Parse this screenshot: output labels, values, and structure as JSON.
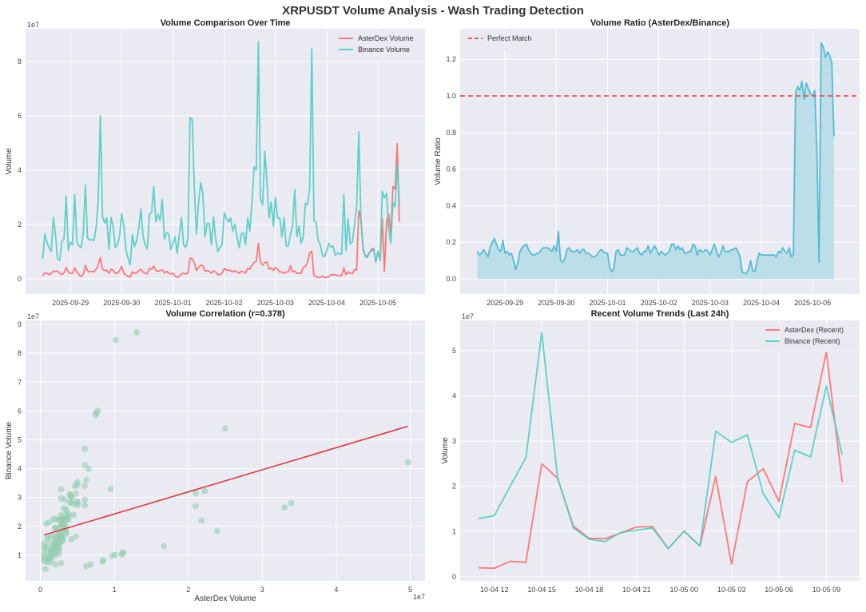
{
  "figure": {
    "title": "XRPUSDT Volume Analysis - Wash Trading Detection",
    "colors": {
      "background": "#ffffff",
      "axes_background": "#eaeaf2",
      "grid": "#ffffff",
      "asterdex": "#ff6b6b",
      "binance": "#4ecdc4",
      "ratio": "#45b7d1",
      "ratio_fill": "#b9dde8",
      "perfect_match": "#e84545",
      "scatter": "#96ceb4",
      "regression": "#e03a3a"
    }
  },
  "chart_data": [
    {
      "type": "line",
      "title": "Volume Comparison Over Time",
      "ylabel": "Volume",
      "xlabel": "",
      "offset_text": "1e7",
      "x_start": "2025-09-28 11:00",
      "x_step_hours": 1,
      "ylim": [
        -0.56,
        9.2
      ],
      "yticks": [
        "0",
        "2",
        "4",
        "6",
        "8"
      ],
      "xticks": [
        "2025-09-29",
        "2025-09-30",
        "2025-10-01",
        "2025-10-02",
        "2025-10-03",
        "2025-10-04",
        "2025-10-05"
      ],
      "grid": true,
      "legend": "top-right",
      "series": [
        {
          "name": "AsterDex Volume",
          "color": "#ff6b6b",
          "values": [
            0.12,
            0.22,
            0.2,
            0.15,
            0.2,
            0.28,
            0.27,
            0.28,
            0.2,
            0.15,
            0.22,
            0.42,
            0.25,
            0.2,
            0.2,
            0.4,
            0.25,
            0.15,
            0.08,
            0.15,
            0.5,
            0.3,
            0.25,
            0.27,
            0.25,
            0.35,
            0.5,
            0.78,
            0.35,
            0.3,
            0.32,
            0.2,
            0.35,
            0.32,
            0.2,
            0.2,
            0.3,
            0.45,
            0.2,
            0.15,
            0.08,
            0.07,
            0.25,
            0.2,
            0.22,
            0.3,
            0.35,
            0.25,
            0.2,
            0.18,
            0.38,
            0.35,
            0.47,
            0.3,
            0.28,
            0.3,
            0.33,
            0.22,
            0.28,
            0.2,
            0.18,
            0.2,
            0.1,
            0.05,
            0.1,
            0.18,
            0.2,
            0.18,
            0.2,
            0.75,
            0.75,
            0.6,
            0.3,
            0.42,
            0.5,
            0.48,
            0.28,
            0.3,
            0.28,
            0.2,
            0.3,
            0.25,
            0.15,
            0.15,
            0.2,
            0.38,
            0.32,
            0.32,
            0.3,
            0.25,
            0.3,
            0.25,
            0.2,
            0.28,
            0.25,
            0.22,
            0.38,
            0.35,
            0.5,
            0.6,
            0.65,
            1.3,
            0.6,
            0.5,
            0.6,
            0.62,
            0.35,
            0.4,
            0.3,
            0.42,
            0.35,
            0.25,
            0.25,
            0.2,
            0.25,
            0.25,
            0.48,
            0.25,
            0.28,
            0.2,
            0.2,
            0.2,
            0.42,
            0.45,
            0.6,
            0.95,
            1.02,
            0.12,
            0.08,
            0.05,
            0.05,
            0.1,
            0.05,
            0.05,
            0.08,
            0.15,
            0.15,
            0.15,
            0.12,
            0.12,
            0.12,
            0.4,
            0.15,
            0.25,
            0.2,
            0.19,
            0.34,
            0.32,
            2.5,
            2.18,
            1.12,
            0.85,
            0.84,
            0.97,
            1.1,
            1.11,
            0.62,
            1.01,
            0.68,
            2.22,
            0.28,
            2.1,
            2.39,
            1.67,
            3.39,
            3.3,
            4.97,
            2.1
          ]
        },
        {
          "name": "Binance Volume",
          "color": "#4ecdc4",
          "values": [
            0.75,
            1.65,
            1.35,
            1.15,
            1.0,
            2.25,
            1.65,
            0.72,
            0.68,
            1.4,
            1.45,
            3.02,
            1.05,
            1.35,
            1.25,
            3.1,
            1.35,
            1.2,
            1.15,
            1.65,
            3.45,
            1.5,
            1.42,
            1.45,
            1.4,
            1.85,
            2.85,
            6.0,
            2.3,
            2.05,
            2.25,
            1.08,
            2.25,
            1.95,
            1.15,
            1.25,
            1.55,
            2.4,
            1.95,
            1.05,
            0.77,
            0.52,
            1.62,
            1.18,
            1.4,
            1.85,
            2.57,
            1.55,
            1.25,
            1.1,
            2.38,
            2.43,
            3.4,
            2.1,
            2.38,
            2.15,
            2.92,
            1.45,
            1.7,
            1.65,
            1.08,
            1.3,
            1.55,
            0.93,
            1.65,
            2.25,
            1.25,
            1.15,
            1.45,
            5.93,
            5.87,
            3.4,
            1.65,
            2.82,
            3.53,
            3.14,
            1.55,
            2.04,
            2.04,
            1.25,
            2.28,
            1.45,
            1.0,
            1.15,
            1.25,
            2.43,
            2.24,
            2.09,
            2.24,
            1.75,
            2.0,
            1.55,
            1.15,
            1.65,
            1.7,
            1.25,
            2.24,
            1.75,
            2.82,
            4.12,
            4.0,
            8.73,
            2.92,
            2.73,
            4.69,
            3.6,
            2.24,
            2.82,
            1.94,
            3.0,
            2.24,
            2.24,
            1.55,
            2.24,
            1.2,
            1.2,
            1.65,
            1.94,
            3.28,
            1.55,
            1.94,
            1.3,
            1.55,
            2.78,
            2.73,
            3.3,
            8.46,
            2.14,
            2.09,
            1.4,
            1.25,
            0.86,
            0.81,
            1.05,
            1.3,
            1.16,
            1.2,
            0.86,
            0.96,
            0.91,
            0.91,
            3.1,
            1.05,
            2.22,
            1.29,
            1.35,
            2.0,
            2.63,
            5.4,
            2.2,
            1.08,
            0.83,
            0.78,
            0.98,
            1.03,
            1.08,
            0.62,
            1.01,
            0.68,
            3.22,
            2.97,
            3.14,
            1.84,
            1.31,
            2.8,
            2.65,
            4.22,
            2.7
          ]
        }
      ]
    },
    {
      "type": "area",
      "title": "Volume Ratio (AsterDex/Binance)",
      "ylabel": "Volume Ratio",
      "xlabel": "",
      "x_start": "2025-09-28 11:00",
      "x_step_hours": 1,
      "ylim": [
        -0.083,
        1.367
      ],
      "yticks": [
        "0.0",
        "0.2",
        "0.4",
        "0.6",
        "0.8",
        "1.0",
        "1.2"
      ],
      "xticks": [
        "2025-09-29",
        "2025-09-30",
        "2025-10-01",
        "2025-10-02",
        "2025-10-03",
        "2025-10-04",
        "2025-10-05"
      ],
      "grid": true,
      "legend": "top-left",
      "reference_line": {
        "name": "Perfect Match",
        "value": 1.0,
        "style": "dashed",
        "color": "#e84545"
      },
      "series": [
        {
          "color": "#45b7d1",
          "values": [
            0.15,
            0.13,
            0.14,
            0.16,
            0.14,
            0.12,
            0.17,
            0.2,
            0.22,
            0.19,
            0.16,
            0.15,
            0.21,
            0.14,
            0.15,
            0.13,
            0.14,
            0.1,
            0.05,
            0.09,
            0.15,
            0.17,
            0.18,
            0.19,
            0.16,
            0.14,
            0.13,
            0.13,
            0.14,
            0.14,
            0.16,
            0.17,
            0.17,
            0.17,
            0.16,
            0.15,
            0.18,
            0.15,
            0.26,
            0.1,
            0.09,
            0.11,
            0.16,
            0.17,
            0.15,
            0.15,
            0.15,
            0.16,
            0.14,
            0.16,
            0.16,
            0.14,
            0.14,
            0.13,
            0.12,
            0.12,
            0.13,
            0.15,
            0.16,
            0.15,
            0.14,
            0.14,
            0.06,
            0.04,
            0.06,
            0.15,
            0.16,
            0.13,
            0.13,
            0.13,
            0.17,
            0.16,
            0.15,
            0.15,
            0.16,
            0.17,
            0.14,
            0.13,
            0.15,
            0.15,
            0.18,
            0.14,
            0.16,
            0.18,
            0.16,
            0.13,
            0.15,
            0.14,
            0.13,
            0.14,
            0.15,
            0.19,
            0.19,
            0.16,
            0.18,
            0.16,
            0.17,
            0.14,
            0.14,
            0.15,
            0.15,
            0.19,
            0.18,
            0.13,
            0.16,
            0.15,
            0.15,
            0.16,
            0.15,
            0.13,
            0.16,
            0.19,
            0.15,
            0.12,
            0.14,
            0.18,
            0.15,
            0.15,
            0.15,
            0.16,
            0.16,
            0.17,
            0.15,
            0.12,
            0.04,
            0.03,
            0.03,
            0.05,
            0.1,
            0.04,
            0.04,
            0.1,
            0.14,
            0.13,
            0.13,
            0.13,
            0.13,
            0.13,
            0.13,
            0.13,
            0.12,
            0.15,
            0.14,
            0.17,
            0.15,
            0.14,
            0.17,
            0.12,
            0.13,
            1.02,
            1.05,
            1.03,
            1.08,
            0.98,
            1.07,
            1.04,
            1.01,
            1.0,
            1.03,
            0.7,
            0.09,
            1.29,
            1.27,
            1.21,
            1.24,
            1.22,
            1.18,
            0.78
          ]
        }
      ]
    },
    {
      "type": "scatter",
      "title": "Volume Correlation (r=0.378)",
      "r": 0.378,
      "xlabel": "AsterDex Volume",
      "ylabel": "Binance Volume",
      "x_offset_text": "1e7",
      "y_offset_text": "1e7",
      "x_source": "AsterDex Volume",
      "y_source": "Binance Volume",
      "xlim": [
        -0.2,
        5.2
      ],
      "ylim": [
        0.11,
        9.14
      ],
      "xticks": [
        "0",
        "1",
        "2",
        "3",
        "4",
        "5"
      ],
      "yticks": [
        "1",
        "2",
        "3",
        "4",
        "5",
        "6",
        "7",
        "8",
        "9"
      ],
      "grid": true,
      "regression_line": {
        "x": [
          0.05,
          4.97
        ],
        "y": [
          1.7,
          5.47
        ]
      }
    },
    {
      "type": "line",
      "title": "Recent Volume Trends (Last 24h)",
      "ylabel": "Volume",
      "xlabel": "",
      "offset_text": "1e7",
      "x_start": "2025-10-04 11:00",
      "x_step_hours": 1,
      "ylim": [
        -0.09,
        5.67
      ],
      "yticks": [
        "0",
        "1",
        "2",
        "3",
        "4",
        "5"
      ],
      "xticks": [
        "10-04 12",
        "10-04 15",
        "10-04 18",
        "10-04 21",
        "10-05 00",
        "10-05 03",
        "10-05 06",
        "10-05 09"
      ],
      "grid": true,
      "legend": "top-right",
      "series": [
        {
          "name": "AsterDex (Recent)",
          "color": "#ff6b6b",
          "values": [
            0.2,
            0.19,
            0.34,
            0.32,
            2.5,
            2.18,
            1.12,
            0.85,
            0.84,
            0.97,
            1.1,
            1.11,
            0.62,
            1.01,
            0.68,
            2.22,
            0.28,
            2.1,
            2.39,
            1.67,
            3.39,
            3.3,
            4.97,
            2.1
          ]
        },
        {
          "name": "Binance (Recent)",
          "color": "#4ecdc4",
          "values": [
            1.29,
            1.35,
            2.0,
            2.63,
            5.4,
            2.2,
            1.08,
            0.83,
            0.78,
            0.98,
            1.03,
            1.08,
            0.62,
            1.01,
            0.68,
            3.22,
            2.97,
            3.14,
            1.84,
            1.31,
            2.8,
            2.65,
            4.22,
            2.7
          ]
        }
      ]
    }
  ]
}
